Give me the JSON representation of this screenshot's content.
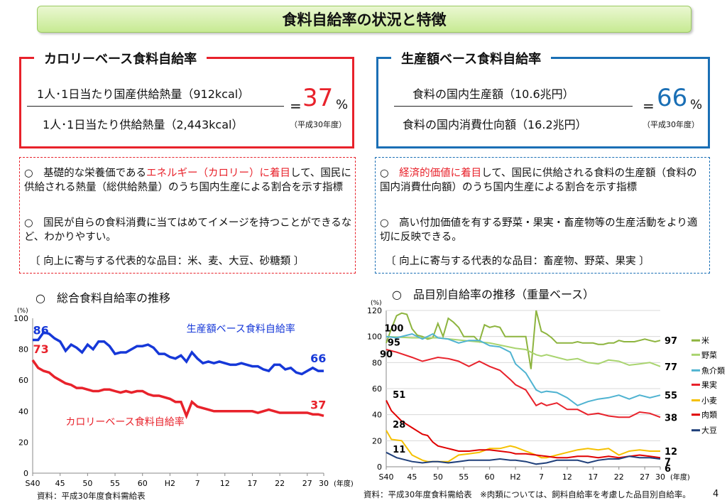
{
  "title": "食料自給率の状況と特徴",
  "calorie": {
    "label": "カロリーベース食料自給率",
    "numerator": "1人･1日当たり国産供給熱量（912kcal）",
    "denominator": "1人･1日当たり供給熱量（2,443kcal）",
    "eq": "=",
    "value": "37",
    "pct": "%",
    "year": "（平成30年度）",
    "bullet1_a": "○　基礎的な栄養価である",
    "bullet1_hl": "エネルギー（カロリー）に着目",
    "bullet1_b": "して、国民に供給される熱量（総供給熱量）のうち国内生産による割合を示す指標",
    "bullet2": "○　国民が自らの食料消費に当てはめてイメージを持つことができるなど、わかりやすい。",
    "items": "〔 向上に寄与する代表的な品目：米、麦、大豆、砂糖類 〕"
  },
  "production": {
    "label": "生産額ベース食料自給率",
    "numerator": "食料の国内生産額（10.6兆円）",
    "denominator": "食料の国内消費仕向額（16.2兆円）",
    "eq": "=",
    "value": "66",
    "pct": "%",
    "year": "（平成30年度）",
    "bullet1_a": "○　",
    "bullet1_hl": "経済的価値に着目",
    "bullet1_b": "して、国民に供給される食料の生産額（食料の国内消費仕向額）のうち国内生産による割合を示す指標",
    "bullet2": "○　高い付加価値を有する野菜・果実・畜産物等の生産活動をより適切に反映できる。",
    "items": "〔 向上に寄与する代表的な品目：畜産物、野菜、果実 〕"
  },
  "left_chart_title": "○　総合食料自給率の推移",
  "right_chart_title": "○　品目別自給率の推移（重量ベース）",
  "left_source": "資料：平成30年度食料需給表",
  "right_source": "資料：平成30年度食料需給表　※肉類については、飼料自給率を考慮した品目別自給率。",
  "page_number": "4",
  "colors": {
    "red": "#e8222b",
    "blue": "#1a6fb5",
    "green_title": "#c7ea93",
    "rice": "#8db43e",
    "veg": "#a9d46f",
    "fish": "#4fb3d1",
    "fruit": "#e8222b",
    "wheat": "#f5c000",
    "meat": "#e00000",
    "soy": "#1f3f7a",
    "prod": "#1638d8"
  },
  "chart_data": [
    {
      "type": "line",
      "unit": "(%)",
      "xlabel": "(年度)",
      "x_tick_labels": [
        "S40",
        "45",
        "50",
        "55",
        "60",
        "H2",
        "7",
        "12",
        "17",
        "22",
        "27",
        "30"
      ],
      "x_tick_years": [
        1965,
        1970,
        1975,
        1980,
        1985,
        1990,
        1995,
        2000,
        2005,
        2010,
        2015,
        2018
      ],
      "xlim": [
        1965,
        2018
      ],
      "ylim": [
        0,
        100
      ],
      "y_ticks": [
        0,
        20,
        40,
        60,
        80,
        100
      ],
      "grid": false,
      "series": [
        {
          "name": "生産額ベース食料自給率",
          "color": "#1638d8",
          "start_label": "86",
          "end_label": "66",
          "x": [
            1965,
            1966,
            1967,
            1968,
            1969,
            1970,
            1971,
            1972,
            1973,
            1974,
            1975,
            1976,
            1977,
            1978,
            1979,
            1980,
            1981,
            1982,
            1983,
            1984,
            1985,
            1986,
            1987,
            1988,
            1989,
            1990,
            1991,
            1992,
            1993,
            1994,
            1995,
            1996,
            1997,
            1998,
            1999,
            2000,
            2001,
            2002,
            2003,
            2004,
            2005,
            2006,
            2007,
            2008,
            2009,
            2010,
            2011,
            2012,
            2013,
            2014,
            2015,
            2016,
            2017,
            2018
          ],
          "y": [
            86,
            86,
            91,
            90,
            87,
            85,
            79,
            83,
            81,
            78,
            83,
            80,
            85,
            85,
            82,
            77,
            78,
            78,
            80,
            82,
            82,
            83,
            81,
            77,
            77,
            75,
            74,
            76,
            72,
            78,
            74,
            71,
            72,
            71,
            72,
            71,
            70,
            70,
            71,
            70,
            69,
            69,
            67,
            66,
            70,
            70,
            67,
            68,
            65,
            64,
            66,
            68,
            66,
            66
          ]
        },
        {
          "name": "カロリーベース食料自給率",
          "color": "#e8222b",
          "start_label": "73",
          "end_label": "37",
          "x": [
            1965,
            1966,
            1967,
            1968,
            1969,
            1970,
            1971,
            1972,
            1973,
            1974,
            1975,
            1976,
            1977,
            1978,
            1979,
            1980,
            1981,
            1982,
            1983,
            1984,
            1985,
            1986,
            1987,
            1988,
            1989,
            1990,
            1991,
            1992,
            1993,
            1994,
            1995,
            1996,
            1997,
            1998,
            1999,
            2000,
            2001,
            2002,
            2003,
            2004,
            2005,
            2006,
            2007,
            2008,
            2009,
            2010,
            2011,
            2012,
            2013,
            2014,
            2015,
            2016,
            2017,
            2018
          ],
          "y": [
            73,
            68,
            66,
            65,
            62,
            60,
            58,
            57,
            55,
            55,
            54,
            53,
            53,
            54,
            54,
            53,
            52,
            53,
            52,
            53,
            53,
            51,
            50,
            50,
            49,
            48,
            46,
            46,
            37,
            46,
            43,
            42,
            41,
            40,
            40,
            40,
            40,
            40,
            40,
            40,
            40,
            39,
            40,
            41,
            40,
            39,
            39,
            39,
            39,
            39,
            39,
            38,
            38,
            37
          ]
        }
      ]
    },
    {
      "type": "line",
      "unit": "(%)",
      "xlabel": "(年度)",
      "x_tick_labels": [
        "S40",
        "45",
        "50",
        "55",
        "60",
        "H2",
        "7",
        "12",
        "17",
        "22",
        "27",
        "30"
      ],
      "x_tick_years": [
        1965,
        1970,
        1975,
        1980,
        1985,
        1990,
        1995,
        2000,
        2005,
        2010,
        2015,
        2018
      ],
      "xlim": [
        1965,
        2018
      ],
      "ylim": [
        0,
        120
      ],
      "y_ticks": [
        0,
        20,
        40,
        60,
        80,
        100,
        120
      ],
      "grid": true,
      "series": [
        {
          "name": "米",
          "color": "#8db43e",
          "start_label": "95",
          "end_label": "97",
          "start_label_alt": "100",
          "x": [
            1965,
            1966,
            1967,
            1968,
            1969,
            1970,
            1971,
            1972,
            1973,
            1974,
            1975,
            1976,
            1977,
            1978,
            1979,
            1980,
            1981,
            1982,
            1983,
            1984,
            1985,
            1986,
            1987,
            1988,
            1989,
            1990,
            1991,
            1992,
            1993,
            1994,
            1995,
            1996,
            1997,
            1998,
            1999,
            2000,
            2001,
            2002,
            2003,
            2004,
            2005,
            2006,
            2007,
            2008,
            2009,
            2010,
            2011,
            2012,
            2013,
            2014,
            2015,
            2016,
            2017,
            2018
          ],
          "y": [
            95,
            106,
            116,
            118,
            117,
            106,
            101,
            100,
            98,
            99,
            110,
            100,
            114,
            111,
            107,
            100,
            100,
            100,
            96,
            109,
            107,
            108,
            107,
            100,
            100,
            100,
            100,
            100,
            75,
            120,
            104,
            102,
            99,
            95,
            95,
            95,
            95,
            96,
            95,
            95,
            95,
            94,
            94,
            95,
            95,
            97,
            96,
            96,
            96,
            97,
            98,
            97,
            96,
            97
          ]
        },
        {
          "name": "野菜",
          "color": "#a9d46f",
          "start_label": "100",
          "end_label": "77",
          "x": [
            1965,
            1970,
            1975,
            1980,
            1985,
            1990,
            1992,
            1994,
            1995,
            1996,
            1998,
            2000,
            2002,
            2004,
            2006,
            2008,
            2010,
            2012,
            2014,
            2016,
            2018
          ],
          "y": [
            100,
            99,
            99,
            97,
            95,
            91,
            90,
            86,
            85,
            86,
            84,
            82,
            83,
            80,
            79,
            82,
            81,
            78,
            79,
            80,
            77
          ]
        },
        {
          "name": "魚介類",
          "color": "#4fb3d1",
          "start_label": "",
          "end_label": "55",
          "x": [
            1965,
            1967,
            1970,
            1972,
            1974,
            1975,
            1977,
            1979,
            1981,
            1983,
            1985,
            1987,
            1989,
            1990,
            1992,
            1994,
            1995,
            1996,
            1998,
            2000,
            2002,
            2004,
            2006,
            2008,
            2010,
            2012,
            2014,
            2016,
            2018
          ],
          "y": [
            100,
            99,
            102,
            98,
            102,
            99,
            98,
            95,
            97,
            97,
            93,
            92,
            88,
            79,
            72,
            59,
            57,
            58,
            57,
            53,
            47,
            50,
            52,
            53,
            55,
            52,
            55,
            53,
            55
          ]
        },
        {
          "name": "果実",
          "color": "#e8222b",
          "start_label": "90",
          "end_label": "38",
          "x": [
            1965,
            1967,
            1970,
            1972,
            1974,
            1975,
            1977,
            1979,
            1981,
            1983,
            1985,
            1987,
            1989,
            1990,
            1992,
            1994,
            1995,
            1996,
            1998,
            2000,
            2002,
            2004,
            2006,
            2008,
            2010,
            2012,
            2014,
            2016,
            2018
          ],
          "y": [
            90,
            88,
            84,
            81,
            83,
            84,
            83,
            81,
            77,
            81,
            77,
            74,
            67,
            63,
            59,
            47,
            49,
            47,
            49,
            44,
            44,
            40,
            41,
            39,
            38,
            38,
            42,
            41,
            38
          ]
        },
        {
          "name": "小麦",
          "color": "#f5c000",
          "start_label": "28",
          "end_label": "12",
          "x": [
            1965,
            1966,
            1968,
            1970,
            1972,
            1973,
            1975,
            1977,
            1979,
            1981,
            1983,
            1985,
            1987,
            1989,
            1990,
            1992,
            1994,
            1995,
            1996,
            1998,
            2000,
            2002,
            2004,
            2006,
            2008,
            2010,
            2012,
            2014,
            2016,
            2018
          ],
          "y": [
            28,
            21,
            20,
            9,
            5,
            4,
            4,
            4,
            9,
            10,
            11,
            14,
            14,
            16,
            15,
            12,
            9,
            7,
            7,
            9,
            11,
            13,
            14,
            13,
            14,
            9,
            12,
            13,
            12,
            12
          ]
        },
        {
          "name": "肉類",
          "color": "#e00000",
          "start_label": "51",
          "end_label": "7",
          "x": [
            1965,
            1966,
            1968,
            1970,
            1972,
            1973,
            1974,
            1975,
            1977,
            1979,
            1981,
            1983,
            1985,
            1987,
            1989,
            1990,
            1992,
            1994,
            1996,
            1998,
            2000,
            2002,
            2004,
            2006,
            2008,
            2010,
            2012,
            2014,
            2016,
            2018
          ],
          "y": [
            51,
            43,
            35,
            30,
            25,
            24,
            19,
            16,
            14,
            12,
            12,
            13,
            13,
            12,
            11,
            10,
            10,
            9,
            8,
            7,
            7,
            8,
            8,
            7,
            8,
            7,
            8,
            9,
            8,
            7
          ]
        },
        {
          "name": "大豆",
          "color": "#1f3f7a",
          "start_label": "11",
          "end_label": "6",
          "x": [
            1965,
            1967,
            1970,
            1972,
            1974,
            1975,
            1977,
            1979,
            1981,
            1983,
            1985,
            1987,
            1989,
            1990,
            1992,
            1994,
            1996,
            1998,
            2000,
            2002,
            2004,
            2006,
            2008,
            2010,
            2012,
            2014,
            2016,
            2018
          ],
          "y": [
            11,
            7,
            4,
            3,
            4,
            4,
            3,
            4,
            5,
            5,
            5,
            6,
            5,
            5,
            4,
            2,
            3,
            5,
            5,
            5,
            3,
            5,
            6,
            6,
            8,
            7,
            7,
            6
          ]
        }
      ]
    }
  ]
}
